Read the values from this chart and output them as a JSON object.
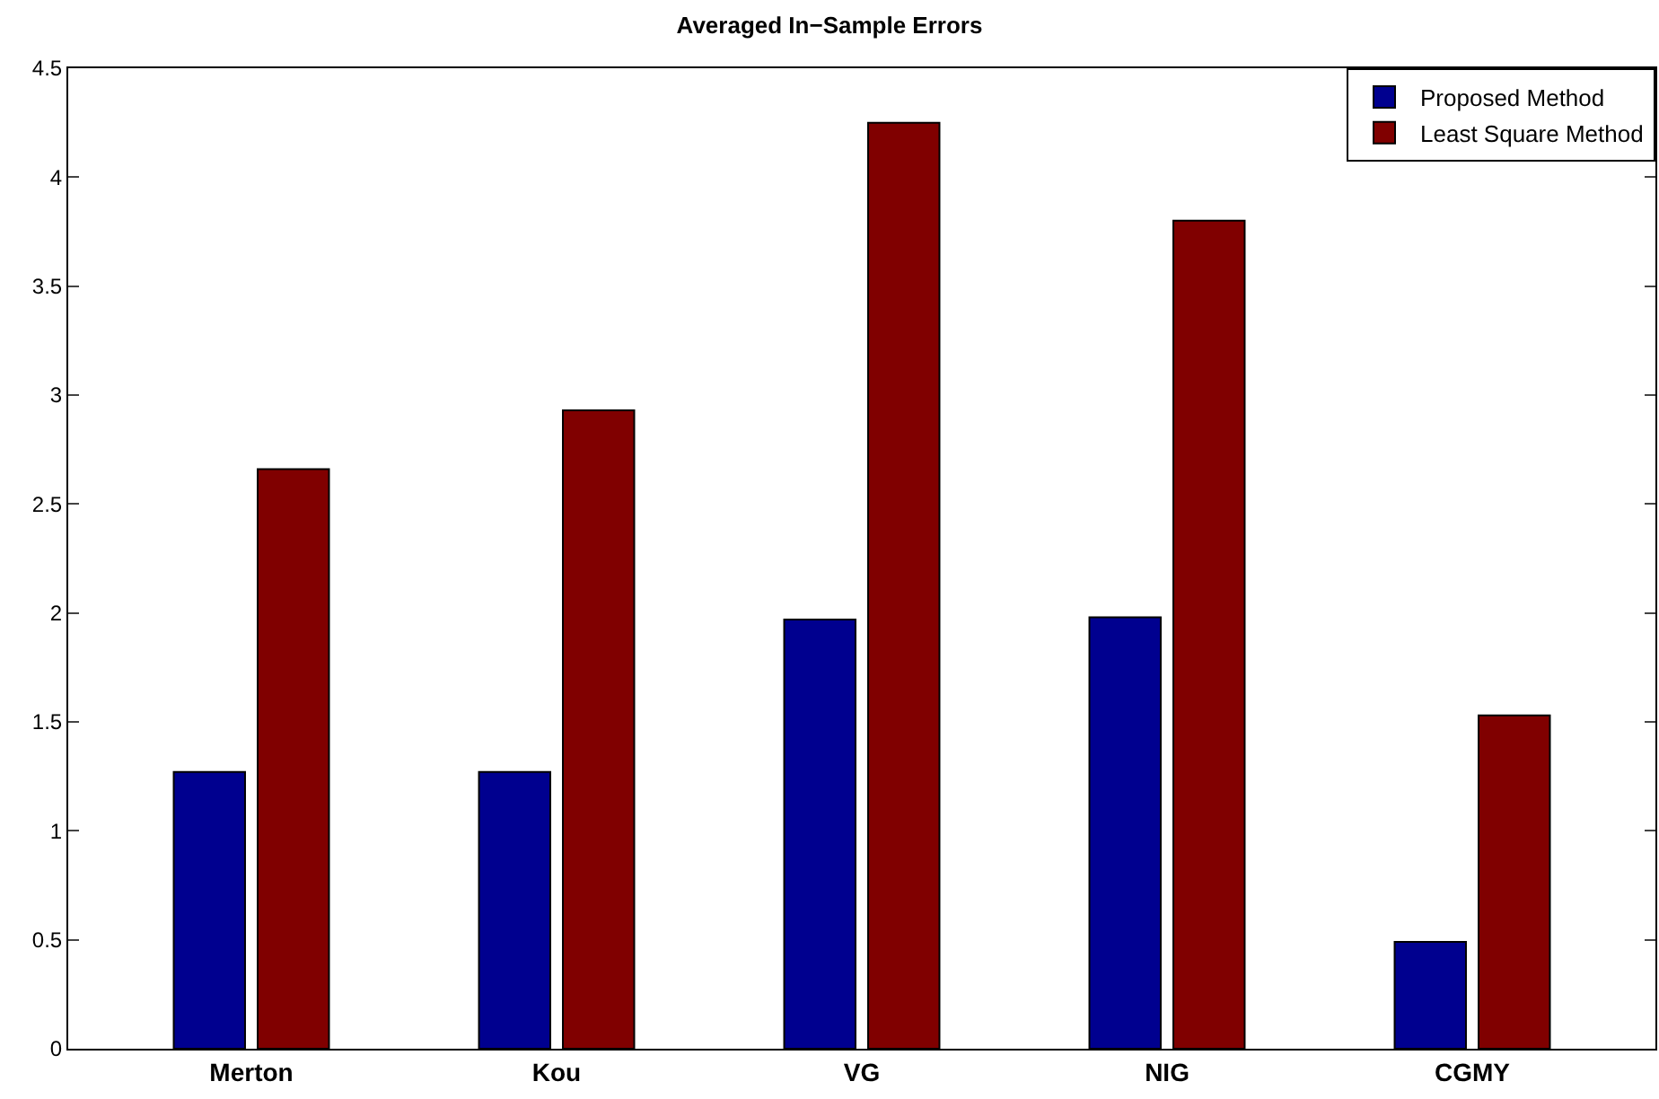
{
  "chart_data": {
    "type": "bar",
    "title": "Averaged In−Sample Errors",
    "categories": [
      "Merton",
      "Kou",
      "VG",
      "NIG",
      "CGMY"
    ],
    "series": [
      {
        "name": "Proposed Method",
        "color": "#00008f",
        "values": [
          1.27,
          1.27,
          1.97,
          1.98,
          0.49
        ]
      },
      {
        "name": "Least Square Method",
        "color": "#800000",
        "values": [
          2.66,
          2.93,
          4.25,
          3.8,
          1.53
        ]
      }
    ],
    "ylim": [
      0,
      4.5
    ],
    "yticks": [
      0,
      0.5,
      1,
      1.5,
      2,
      2.5,
      3,
      3.5,
      4,
      4.5
    ],
    "legend": "top right"
  }
}
